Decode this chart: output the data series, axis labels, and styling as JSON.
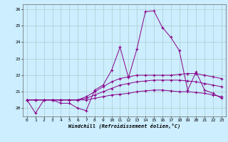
{
  "xlabel": "Windchill (Refroidissement éolien,°C)",
  "background_color": "#cceeff",
  "grid_color": "#aacccc",
  "line_color": "#880088",
  "xlim": [
    -0.5,
    23.5
  ],
  "ylim": [
    19.5,
    26.3
  ],
  "yticks": [
    20,
    21,
    22,
    23,
    24,
    25,
    26
  ],
  "xticks": [
    0,
    1,
    2,
    3,
    4,
    5,
    6,
    7,
    8,
    9,
    10,
    11,
    12,
    13,
    14,
    15,
    16,
    17,
    18,
    19,
    20,
    21,
    22,
    23
  ],
  "series": [
    [
      20.5,
      19.7,
      20.5,
      20.5,
      20.3,
      20.3,
      20.0,
      19.85,
      21.1,
      21.4,
      22.3,
      23.7,
      21.85,
      23.6,
      25.85,
      25.9,
      24.9,
      24.3,
      23.5,
      21.1,
      22.2,
      21.1,
      20.9,
      20.6
    ],
    [
      20.5,
      20.5,
      20.5,
      20.5,
      20.5,
      20.5,
      20.5,
      20.7,
      21.0,
      21.3,
      21.6,
      21.8,
      21.9,
      22.0,
      22.0,
      22.0,
      22.0,
      22.0,
      22.05,
      22.1,
      22.1,
      22.0,
      21.9,
      21.8
    ],
    [
      20.5,
      20.5,
      20.5,
      20.5,
      20.5,
      20.5,
      20.5,
      20.6,
      20.8,
      21.0,
      21.2,
      21.4,
      21.5,
      21.6,
      21.65,
      21.7,
      21.7,
      21.7,
      21.7,
      21.65,
      21.6,
      21.5,
      21.4,
      21.3
    ],
    [
      20.5,
      20.5,
      20.5,
      20.5,
      20.5,
      20.5,
      20.5,
      20.5,
      20.6,
      20.7,
      20.8,
      20.85,
      20.9,
      21.0,
      21.05,
      21.1,
      21.1,
      21.05,
      21.0,
      21.0,
      20.95,
      20.9,
      20.8,
      20.7
    ]
  ]
}
